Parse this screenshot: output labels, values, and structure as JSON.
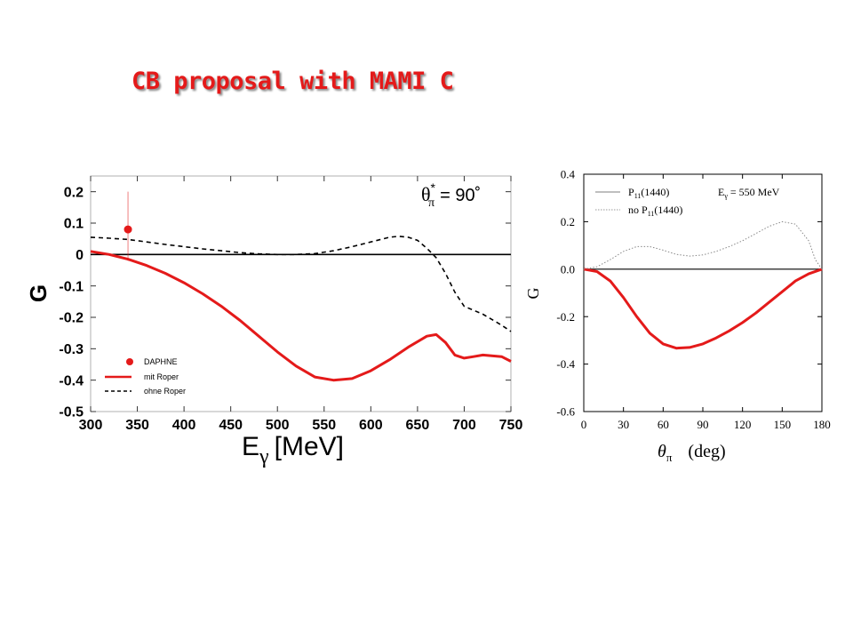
{
  "slide": {
    "title": "CB proposal with MAMI C",
    "accent_color": "#e41a1a"
  },
  "chart_data": [
    {
      "type": "line",
      "xlabel": "E",
      "xlabel_sub": "γ",
      "xlabel_unit": "[MeV]",
      "ylabel": "G",
      "xlim": [
        300,
        750
      ],
      "ylim": [
        -0.5,
        0.25
      ],
      "xticks": [
        300,
        350,
        400,
        450,
        500,
        550,
        600,
        650,
        700,
        750
      ],
      "yticks": [
        0.2,
        0.1,
        0,
        -0.1,
        -0.2,
        -0.3,
        -0.4,
        -0.5
      ],
      "ytick_labels": [
        "0.2",
        "0.1",
        "0",
        "-0.1",
        "-0.2",
        "-0.3",
        "-0.4",
        "-0.5"
      ],
      "annotation": {
        "symbol": "θ",
        "sub": "π",
        "sup": "*",
        "text": "= 90˚"
      },
      "series": [
        {
          "name": "DAPHNE",
          "style": "point",
          "color": "#e41a1a",
          "points": [
            {
              "x": 340,
              "y": 0.08,
              "err_low": 0.1,
              "err_high": 0.12
            }
          ]
        },
        {
          "name": "mit Roper",
          "style": "solid",
          "color": "#e41a1a",
          "points": [
            [
              300,
              0.01
            ],
            [
              320,
              0.0
            ],
            [
              340,
              -0.015
            ],
            [
              360,
              -0.035
            ],
            [
              380,
              -0.06
            ],
            [
              400,
              -0.09
            ],
            [
              420,
              -0.125
            ],
            [
              440,
              -0.165
            ],
            [
              460,
              -0.21
            ],
            [
              480,
              -0.26
            ],
            [
              500,
              -0.31
            ],
            [
              520,
              -0.355
            ],
            [
              540,
              -0.39
            ],
            [
              560,
              -0.4
            ],
            [
              580,
              -0.395
            ],
            [
              600,
              -0.37
            ],
            [
              620,
              -0.335
            ],
            [
              640,
              -0.295
            ],
            [
              660,
              -0.26
            ],
            [
              670,
              -0.255
            ],
            [
              680,
              -0.28
            ],
            [
              690,
              -0.32
            ],
            [
              700,
              -0.33
            ],
            [
              710,
              -0.325
            ],
            [
              720,
              -0.32
            ],
            [
              740,
              -0.325
            ],
            [
              750,
              -0.34
            ]
          ]
        },
        {
          "name": "ohne Roper",
          "style": "dashed",
          "color": "#000000",
          "points": [
            [
              300,
              0.055
            ],
            [
              320,
              0.052
            ],
            [
              340,
              0.048
            ],
            [
              360,
              0.04
            ],
            [
              380,
              0.032
            ],
            [
              400,
              0.025
            ],
            [
              420,
              0.018
            ],
            [
              440,
              0.012
            ],
            [
              460,
              0.006
            ],
            [
              480,
              0.002
            ],
            [
              500,
              0.0
            ],
            [
              520,
              0.0
            ],
            [
              540,
              0.003
            ],
            [
              560,
              0.012
            ],
            [
              580,
              0.025
            ],
            [
              600,
              0.04
            ],
            [
              620,
              0.055
            ],
            [
              630,
              0.058
            ],
            [
              640,
              0.055
            ],
            [
              650,
              0.045
            ],
            [
              660,
              0.02
            ],
            [
              670,
              -0.01
            ],
            [
              680,
              -0.06
            ],
            [
              690,
              -0.12
            ],
            [
              700,
              -0.165
            ],
            [
              720,
              -0.19
            ],
            [
              740,
              -0.225
            ],
            [
              750,
              -0.245
            ]
          ]
        }
      ]
    },
    {
      "type": "line",
      "xlabel": "θ",
      "xlabel_sub": "π",
      "xlabel_unit": "(deg)",
      "ylabel": "G",
      "xlim": [
        0,
        180
      ],
      "ylim": [
        -0.6,
        0.4
      ],
      "xticks": [
        0,
        30,
        60,
        90,
        120,
        150,
        180
      ],
      "yticks": [
        0.4,
        0.2,
        0.0,
        -0.2,
        -0.4,
        -0.6
      ],
      "ytick_labels": [
        "0.4",
        "0.2",
        "0.0",
        "-0.2",
        "-0.4",
        "-0.6"
      ],
      "annotation": {
        "symbol": "E",
        "sub": "γ",
        "text": "= 550 MeV"
      },
      "series": [
        {
          "name": "P11(1440)",
          "legend_main": "P",
          "legend_sub": "11",
          "legend_rest": "(1440)",
          "style": "solid",
          "color": "#e41a1a",
          "points": [
            [
              0,
              0.0
            ],
            [
              10,
              -0.01
            ],
            [
              20,
              -0.05
            ],
            [
              30,
              -0.12
            ],
            [
              40,
              -0.2
            ],
            [
              50,
              -0.27
            ],
            [
              60,
              -0.315
            ],
            [
              70,
              -0.333
            ],
            [
              80,
              -0.33
            ],
            [
              90,
              -0.315
            ],
            [
              100,
              -0.29
            ],
            [
              110,
              -0.26
            ],
            [
              120,
              -0.225
            ],
            [
              130,
              -0.185
            ],
            [
              140,
              -0.14
            ],
            [
              150,
              -0.095
            ],
            [
              160,
              -0.05
            ],
            [
              170,
              -0.02
            ],
            [
              180,
              0.0
            ]
          ]
        },
        {
          "name": "no P11(1440)",
          "legend_main": "no P",
          "legend_sub": "11",
          "legend_rest": "(1440)",
          "style": "dotted",
          "color": "#888888",
          "points": [
            [
              0,
              0.0
            ],
            [
              10,
              0.01
            ],
            [
              20,
              0.04
            ],
            [
              30,
              0.075
            ],
            [
              40,
              0.095
            ],
            [
              50,
              0.095
            ],
            [
              60,
              0.08
            ],
            [
              70,
              0.062
            ],
            [
              80,
              0.055
            ],
            [
              90,
              0.06
            ],
            [
              100,
              0.075
            ],
            [
              110,
              0.095
            ],
            [
              120,
              0.12
            ],
            [
              130,
              0.15
            ],
            [
              140,
              0.18
            ],
            [
              150,
              0.2
            ],
            [
              160,
              0.19
            ],
            [
              170,
              0.12
            ],
            [
              175,
              0.04
            ],
            [
              180,
              0.0
            ]
          ]
        }
      ]
    }
  ]
}
